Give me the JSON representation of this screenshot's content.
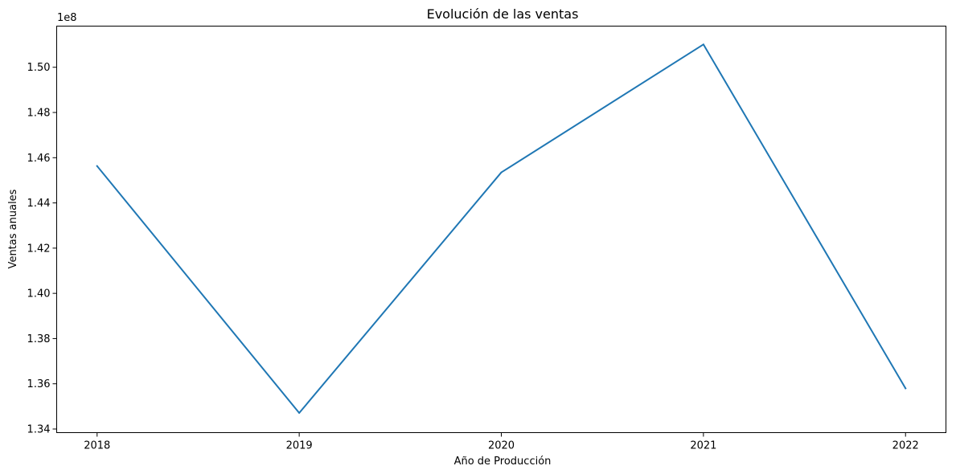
{
  "chart_data": {
    "type": "line",
    "title": "Evolución de las ventas",
    "xlabel": "Año de Producción",
    "ylabel": "Ventas anuales",
    "y_offset_label": "1e8",
    "x": [
      2018,
      2019,
      2020,
      2021,
      2022
    ],
    "x_tick_labels": [
      "2018",
      "2019",
      "2020",
      "2021",
      "2022"
    ],
    "y_ticks": [
      1.34,
      1.36,
      1.38,
      1.4,
      1.42,
      1.44,
      1.46,
      1.48,
      1.5
    ],
    "y_tick_labels": [
      "1.34",
      "1.36",
      "1.38",
      "1.40",
      "1.42",
      "1.44",
      "1.46",
      "1.48",
      "1.50"
    ],
    "ylim": [
      1.3384,
      1.5182
    ],
    "series": [
      {
        "values": [
          1.4563,
          1.3471,
          1.4535,
          1.5101,
          1.358
        ],
        "color": "#1f77b4"
      }
    ],
    "grid": false,
    "legend": "none"
  }
}
